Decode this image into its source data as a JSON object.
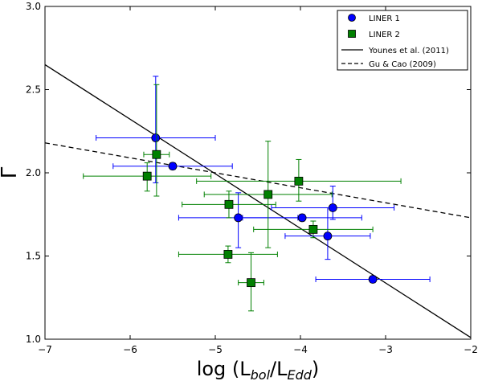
{
  "chart_data": {
    "type": "scatter",
    "title": "",
    "xlabel": "log (L",
    "xlabel_sub1": "bol",
    "xlabel_mid": "/L",
    "xlabel_sub2": "Edd",
    "xlabel_end": ")",
    "ylabel": "Γ",
    "xlim": [
      -7,
      -2
    ],
    "ylim": [
      1.0,
      3.0
    ],
    "xticks": [
      -7,
      -6,
      -5,
      -4,
      -3,
      -2
    ],
    "yticks": [
      1.0,
      1.5,
      2.0,
      2.5,
      3.0
    ],
    "xtick_labels": [
      "−7",
      "−6",
      "−5",
      "−4",
      "−3",
      "−2"
    ],
    "ytick_labels": [
      "1.0",
      "1.5",
      "2.0",
      "2.5",
      "3.0"
    ],
    "series": [
      {
        "name": "LINER 1",
        "marker": "circle",
        "color": "#0000ff",
        "points": [
          {
            "x": -5.7,
            "y": 2.21,
            "xerr": 0.7,
            "yerr_lo": 0.27,
            "yerr_hi": 0.37
          },
          {
            "x": -5.5,
            "y": 2.04,
            "xerr": 0.7,
            "yerr_lo": 0.02,
            "yerr_hi": 0.02
          },
          {
            "x": -4.73,
            "y": 1.73,
            "xerr": 0.7,
            "yerr_lo": 0.18,
            "yerr_hi": 0.15
          },
          {
            "x": -3.98,
            "y": 1.73,
            "xerr": 0.7,
            "yerr_lo": 0.02,
            "yerr_hi": 0.02
          },
          {
            "x": -3.62,
            "y": 1.79,
            "xerr": 0.72,
            "yerr_lo": 0.07,
            "yerr_hi": 0.13
          },
          {
            "x": -3.68,
            "y": 1.62,
            "xerr": 0.5,
            "yerr_lo": 0.14,
            "yerr_hi": 0.17
          },
          {
            "x": -3.15,
            "y": 1.36,
            "xerr": 0.67,
            "yerr_lo": 0.02,
            "yerr_hi": 0.02
          }
        ]
      },
      {
        "name": "LINER 2",
        "marker": "square",
        "color": "#008000",
        "points": [
          {
            "x": -5.69,
            "y": 2.11,
            "xerr": 0.15,
            "yerr_lo": 0.25,
            "yerr_hi": 0.42
          },
          {
            "x": -5.8,
            "y": 1.98,
            "xerr": 0.75,
            "yerr_lo": 0.09,
            "yerr_hi": 0.08
          },
          {
            "x": -4.84,
            "y": 1.81,
            "xerr": 0.55,
            "yerr_lo": 0.08,
            "yerr_hi": 0.08
          },
          {
            "x": -4.38,
            "y": 1.87,
            "xerr": 0.75,
            "yerr_lo": 0.32,
            "yerr_hi": 0.32
          },
          {
            "x": -4.02,
            "y": 1.95,
            "xerr": 1.2,
            "yerr_lo": 0.12,
            "yerr_hi": 0.13
          },
          {
            "x": -3.85,
            "y": 1.66,
            "xerr": 0.7,
            "yerr_lo": 0.05,
            "yerr_hi": 0.05
          },
          {
            "x": -4.85,
            "y": 1.51,
            "xerr": 0.58,
            "yerr_lo": 0.05,
            "yerr_hi": 0.05
          },
          {
            "x": -4.58,
            "y": 1.34,
            "xerr": 0.15,
            "yerr_lo": 0.17,
            "yerr_hi": 0.18
          }
        ]
      }
    ],
    "lines": [
      {
        "name": "Younes et al. (2011)",
        "style": "solid",
        "color": "#000000",
        "x": [
          -7,
          -2
        ],
        "y": [
          2.65,
          1.01
        ]
      },
      {
        "name": "Gu & Cao (2009)",
        "style": "dashed",
        "color": "#000000",
        "x": [
          -7,
          -2
        ],
        "y": [
          2.18,
          1.73
        ]
      }
    ],
    "legend": {
      "placement": "top-right",
      "entries": [
        "LINER 1",
        "LINER 2",
        "Younes et al. (2011)",
        "Gu & Cao (2009)"
      ]
    }
  }
}
